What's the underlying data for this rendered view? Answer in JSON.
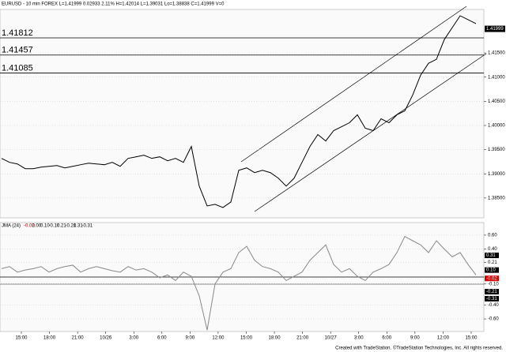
{
  "title": "EURUSD - 10 min  FOREX  L=1.41999  0.02933  2.11%  H=1.42014  L=1.39031  Lo=1.38838  C=1.41999  V=0",
  "footer": "Created with TradeStation. ©TradeStation Technologies, Inc. All rights reserved.",
  "chart_data": [
    {
      "type": "line",
      "color": "#000000",
      "values": [
        1.3932,
        1.39238,
        1.39205,
        1.39107,
        1.39107,
        1.39139,
        1.39156,
        1.39172,
        1.39123,
        1.39156,
        1.39189,
        1.39221,
        1.39205,
        1.39189,
        1.39238,
        1.39156,
        1.3932,
        1.39352,
        1.39385,
        1.3932,
        1.39352,
        1.3927,
        1.3932,
        1.39238,
        1.39566,
        1.38746,
        1.38336,
        1.38369,
        1.38303,
        1.38418,
        1.39074,
        1.39123,
        1.39025,
        1.39074,
        1.39025,
        1.3891,
        1.38746,
        1.3891,
        1.39238,
        1.39566,
        1.39812,
        1.3968,
        1.39894,
        1.39975,
        1.40057,
        1.40221,
        1.39943,
        1.39894,
        1.40139,
        1.40057,
        1.40221,
        1.40303,
        1.40631,
        1.41041,
        1.41287,
        1.41369,
        1.41779,
        1.42025,
        1.4227,
        1.42189,
        1.42107
      ],
      "ylim": [
        1.3809,
        1.424
      ],
      "yticks": [
        {
          "value": 1.415,
          "label": "1.41500"
        },
        {
          "value": 1.41,
          "label": "1.41000"
        },
        {
          "value": 1.405,
          "label": "1.40500"
        },
        {
          "value": 1.4,
          "label": "1.40000"
        },
        {
          "value": 1.395,
          "label": "1.39500"
        },
        {
          "value": 1.39,
          "label": "1.39000"
        },
        {
          "value": 1.385,
          "label": "1.38500"
        }
      ],
      "levels": [
        {
          "value": 1.41812,
          "label": "1.41812"
        },
        {
          "value": 1.41457,
          "label": "1.41457"
        },
        {
          "value": 1.41085,
          "label": "1.41085"
        }
      ],
      "last": {
        "value": 1.41999,
        "label": "1.41999"
      },
      "xtick_labels": [
        "15:00",
        "18:00",
        "21:00",
        "10/26",
        "3:00",
        "6:00",
        "9:00",
        "12:00",
        "15:00",
        "18:00",
        "21:00",
        "10/27",
        "3:00",
        "6:00",
        "9:00",
        "12:00",
        "15:00"
      ]
    },
    {
      "type": "line",
      "title": "JMA (24)",
      "color": "#888888",
      "legend_values": [
        {
          "label": "-0.02",
          "color": "#d00000"
        },
        {
          "label": "0.00",
          "color": "#000000"
        },
        {
          "label": "0.10",
          "color": "#000000"
        },
        {
          "label": "-0.10",
          "color": "#000000"
        },
        {
          "label": "0.21",
          "color": "#000000"
        },
        {
          "label": "-0.21",
          "color": "#000000"
        },
        {
          "label": "0.31",
          "color": "#000000"
        },
        {
          "label": "-0.31",
          "color": "#000000"
        }
      ],
      "values": [
        0.12,
        0.15,
        0.07,
        0.1,
        0.12,
        0.15,
        0.07,
        0.12,
        0.15,
        0.17,
        0.07,
        0.12,
        0.15,
        0.12,
        0.09,
        0.07,
        0.15,
        0.1,
        0.12,
        0.07,
        -0.01,
        0.03,
        -0.05,
        0.07,
        0.01,
        -0.27,
        -0.76,
        -0.1,
        0.07,
        0.12,
        0.35,
        0.44,
        0.24,
        0.15,
        0.12,
        0.07,
        -0.05,
        0.01,
        0.07,
        0.24,
        0.35,
        0.46,
        0.18,
        0.07,
        0.12,
        0.01,
        -0.05,
        0.07,
        0.12,
        0.18,
        0.35,
        0.58,
        0.52,
        0.46,
        0.35,
        0.52,
        0.4,
        0.29,
        0.35,
        0.18,
        0.03
      ],
      "ylim": [
        -0.78,
        0.78
      ],
      "yticks": [
        {
          "value": 0.6,
          "label": "0.60"
        },
        {
          "value": 0.4,
          "label": "0.40"
        },
        {
          "value": 0.21,
          "label": "0.21"
        },
        {
          "value": -0.1,
          "label": "-0.10"
        },
        {
          "value": -0.4,
          "label": "-0.40"
        },
        {
          "value": -0.6,
          "label": "-0.60"
        }
      ],
      "markers": [
        {
          "value": 0.31,
          "label": "0.31",
          "color": "#000000"
        },
        {
          "value": 0.1,
          "label": "0.10",
          "color": "#000000"
        },
        {
          "value": -0.02,
          "label": "-0.02",
          "color": "#d00000"
        },
        {
          "value": -0.21,
          "label": "-0.21",
          "color": "#000000"
        },
        {
          "value": -0.31,
          "label": "-0.31",
          "color": "#000000"
        }
      ]
    }
  ]
}
